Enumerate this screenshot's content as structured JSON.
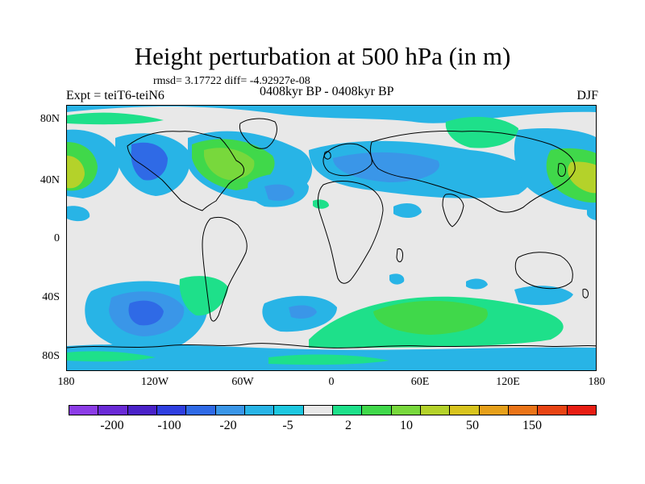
{
  "title": "Height perturbation at 500 hPa (in m)",
  "rmsd_line": "rmsd= 3.17722 diff= -4.92927e-08",
  "expt_label": "Expt = teiT6-teiN6",
  "period_label": "0408kyr BP - 0408kyr BP",
  "season_label": "DJF",
  "y_ticks": [
    "80N",
    "40N",
    "0",
    "40S",
    "80S"
  ],
  "x_ticks": [
    "180",
    "120W",
    "60W",
    "0",
    "60E",
    "120E",
    "180"
  ],
  "colorbar": {
    "colors": [
      "#8c3ce6",
      "#6a2ad6",
      "#4a22c8",
      "#2f3fe0",
      "#2f6ae6",
      "#3a96e8",
      "#28b4e6",
      "#1ec8e0",
      "#e8e8e8",
      "#1ee08a",
      "#40d84a",
      "#78d83c",
      "#b4d22a",
      "#d8c41e",
      "#e6a01a",
      "#ea7418",
      "#e84414",
      "#e81e14"
    ],
    "labels": [
      "-200",
      "-100",
      "-20",
      "-5",
      "2",
      "10",
      "50",
      "150"
    ]
  },
  "legend_colors": {
    "background": "#e8e8e8",
    "coast": "#000000"
  }
}
